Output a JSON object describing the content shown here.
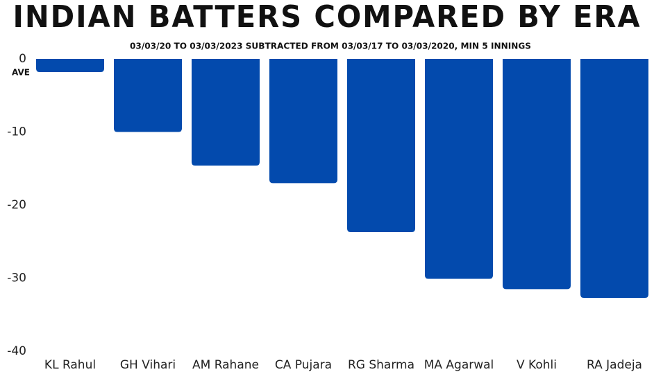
{
  "chart_data": {
    "type": "bar",
    "title": "INDIAN BATTERS COMPARED BY ERA",
    "subtitle": "03/03/20 TO 03/03/2023 SUBTRACTED FROM 03/03/17 TO 03/03/2020, MIN 5 INNINGS",
    "y_label": "AVE",
    "categories": [
      "KL Rahul",
      "GH Vihari",
      "AM Rahane",
      "CA Pujara",
      "RG Sharma",
      "MA Agarwal",
      "V Kohli",
      "RA Jadeja"
    ],
    "values": [
      -1.8,
      -10.0,
      -14.6,
      -17.0,
      -23.7,
      -30.1,
      -31.5,
      -32.7
    ],
    "color": "#034aad",
    "ylim": [
      -40,
      0
    ],
    "yticks": [
      0,
      -10,
      -20,
      -30,
      -40
    ],
    "grid": false
  }
}
